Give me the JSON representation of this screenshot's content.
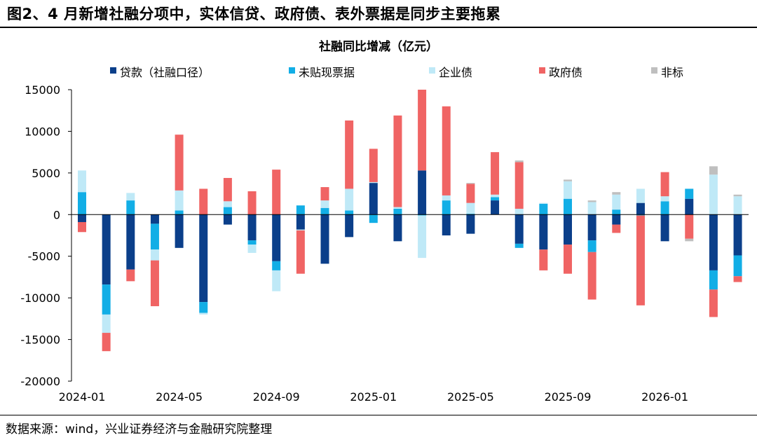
{
  "figure_title": "图2、4 月新增社融分项中，实体信贷、政府债、表外票据是同步主要拖累",
  "source": "数据来源：wind，兴业证券经济与金融研究院整理",
  "colors": {
    "loans": "#0b3f8a",
    "bills": "#12aee6",
    "corp_bonds": "#bfe9f7",
    "gov_bonds": "#f06464",
    "non_standard": "#bfbfbf"
  },
  "chart_data": {
    "type": "bar",
    "stacked": true,
    "title": "社融同比增减（亿元）",
    "xlabel": "",
    "ylabel": "",
    "ylim": [
      -20000,
      15000
    ],
    "yticks": [
      15000,
      10000,
      5000,
      0,
      -5000,
      -10000,
      -15000,
      -20000
    ],
    "ytick_labels": [
      "15000",
      "10000",
      "5000",
      "0",
      "-5000",
      "-10000",
      "-15000",
      "-20000"
    ],
    "xtick_labels": [
      "2024-01",
      "2024-05",
      "2024-09",
      "2025-01",
      "2025-05",
      "2025-09",
      "2026-01"
    ],
    "xtick_indices": [
      0,
      4,
      8,
      12,
      16,
      20,
      24
    ],
    "grid": false,
    "legend_position": "top",
    "categories": [
      "2024-01",
      "2024-02",
      "2024-03",
      "2024-04",
      "2024-05",
      "2024-06",
      "2024-07",
      "2024-08",
      "2024-09",
      "2024-10",
      "2024-11",
      "2024-12",
      "2025-01",
      "2025-02",
      "2025-03",
      "2025-04",
      "2025-05",
      "2025-06",
      "2025-07",
      "2025-08",
      "2025-09",
      "2025-10",
      "2025-11",
      "2025-12",
      "2026-01",
      "2026-02",
      "2026-03",
      "2026-04"
    ],
    "series": [
      {
        "name": "贷款（社融口径）",
        "color_key": "loans",
        "values": [
          -900,
          -8400,
          -6600,
          -1100,
          -4000,
          -10500,
          -1200,
          -3100,
          -5600,
          -1800,
          -5900,
          -2700,
          3800,
          -3200,
          5300,
          -2500,
          -2300,
          1700,
          -3500,
          -4200,
          -3600,
          -3100,
          -1200,
          1400,
          -3200,
          1900,
          -6700,
          -4900
        ]
      },
      {
        "name": "未贴现票据",
        "color_key": "bills",
        "values": [
          2700,
          -3600,
          1700,
          -3100,
          500,
          -1300,
          900,
          -500,
          -1100,
          1100,
          800,
          500,
          -1000,
          700,
          -100,
          1700,
          100,
          400,
          -500,
          1300,
          1900,
          -1400,
          600,
          -100,
          1600,
          1200,
          -2300,
          -2500
        ]
      },
      {
        "name": "企业债",
        "color_key": "corp_bonds",
        "values": [
          2600,
          -2200,
          900,
          -1300,
          2400,
          -200,
          700,
          -1000,
          -2500,
          -100,
          900,
          2600,
          100,
          200,
          -5100,
          600,
          1300,
          300,
          700,
          100,
          2100,
          1500,
          1800,
          1700,
          600,
          0,
          4800,
          2200
        ]
      },
      {
        "name": "政府债",
        "color_key": "gov_bonds",
        "values": [
          -1200,
          -2200,
          -1400,
          -5500,
          6700,
          3100,
          2800,
          2800,
          5400,
          -5200,
          1600,
          8200,
          4000,
          11000,
          9700,
          10700,
          2300,
          5100,
          5600,
          -2500,
          -3500,
          -5700,
          -1000,
          -10800,
          2900,
          -2900,
          -3300,
          -700
        ]
      },
      {
        "name": "非标",
        "color_key": "non_standard",
        "values": [
          0,
          0,
          0,
          0,
          0,
          0,
          0,
          0,
          0,
          0,
          0,
          0,
          0,
          0,
          0,
          0,
          100,
          0,
          200,
          0,
          200,
          200,
          300,
          0,
          0,
          -300,
          1000,
          200
        ]
      }
    ]
  }
}
